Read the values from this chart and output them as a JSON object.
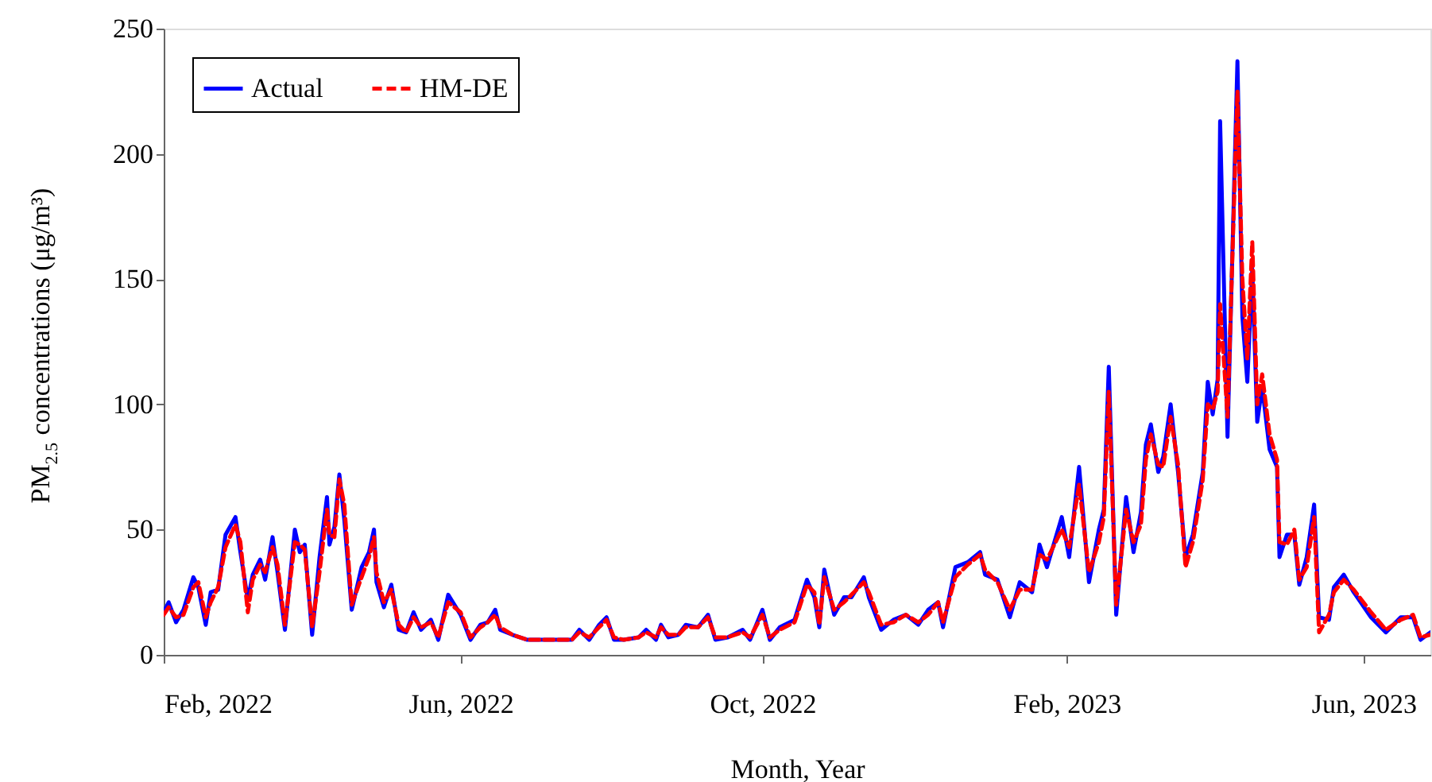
{
  "chart_data": {
    "type": "line",
    "xlabel": "Month, Year",
    "ylabel": "PM$_{2.5}$ concentrations (μg/m³)",
    "x": [
      "2022-02-01",
      "2022-02-03",
      "2022-02-06",
      "2022-02-09",
      "2022-02-13",
      "2022-02-15",
      "2022-02-18",
      "2022-02-20",
      "2022-02-23",
      "2022-02-26",
      "2022-03-02",
      "2022-03-04",
      "2022-03-07",
      "2022-03-09",
      "2022-03-12",
      "2022-03-14",
      "2022-03-17",
      "2022-03-19",
      "2022-03-22",
      "2022-03-26",
      "2022-03-28",
      "2022-03-30",
      "2022-04-02",
      "2022-04-05",
      "2022-04-08",
      "2022-04-09",
      "2022-04-11",
      "2022-04-13",
      "2022-04-15",
      "2022-04-18",
      "2022-04-22",
      "2022-04-25",
      "2022-04-27",
      "2022-04-28",
      "2022-05-01",
      "2022-05-04",
      "2022-05-07",
      "2022-05-10",
      "2022-05-13",
      "2022-05-16",
      "2022-05-20",
      "2022-05-23",
      "2022-05-27",
      "2022-06-01",
      "2022-06-05",
      "2022-06-09",
      "2022-06-12",
      "2022-06-15",
      "2022-06-17",
      "2022-06-22",
      "2022-06-28",
      "2022-07-04",
      "2022-07-11",
      "2022-07-16",
      "2022-07-19",
      "2022-07-23",
      "2022-07-27",
      "2022-07-30",
      "2022-08-02",
      "2022-08-06",
      "2022-08-12",
      "2022-08-15",
      "2022-08-19",
      "2022-08-21",
      "2022-08-24",
      "2022-08-28",
      "2022-08-31",
      "2022-09-05",
      "2022-09-09",
      "2022-09-12",
      "2022-09-17",
      "2022-09-23",
      "2022-09-26",
      "2022-10-01",
      "2022-10-04",
      "2022-10-08",
      "2022-10-14",
      "2022-10-19",
      "2022-10-22",
      "2022-10-24",
      "2022-10-26",
      "2022-10-30",
      "2022-11-03",
      "2022-11-06",
      "2022-11-11",
      "2022-11-13",
      "2022-11-18",
      "2022-11-23",
      "2022-11-28",
      "2022-12-03",
      "2022-12-07",
      "2022-12-11",
      "2022-12-13",
      "2022-12-18",
      "2022-12-23",
      "2022-12-28",
      "2022-12-30",
      "2023-01-04",
      "2023-01-09",
      "2023-01-13",
      "2023-01-18",
      "2023-01-21",
      "2023-01-24",
      "2023-01-30",
      "2023-02-02",
      "2023-02-06",
      "2023-02-10",
      "2023-02-14",
      "2023-02-16",
      "2023-02-18",
      "2023-02-21",
      "2023-02-25",
      "2023-02-28",
      "2023-03-03",
      "2023-03-05",
      "2023-03-07",
      "2023-03-10",
      "2023-03-12",
      "2023-03-15",
      "2023-03-18",
      "2023-03-21",
      "2023-03-24",
      "2023-03-28",
      "2023-03-30",
      "2023-04-01",
      "2023-04-03",
      "2023-04-04",
      "2023-04-07",
      "2023-04-11",
      "2023-04-13",
      "2023-04-15",
      "2023-04-17",
      "2023-04-19",
      "2023-04-21",
      "2023-04-24",
      "2023-04-27",
      "2023-04-28",
      "2023-05-01",
      "2023-05-04",
      "2023-05-06",
      "2023-05-09",
      "2023-05-12",
      "2023-05-14",
      "2023-05-18",
      "2023-05-20",
      "2023-05-24",
      "2023-05-28",
      "2023-06-04",
      "2023-06-10",
      "2023-06-16",
      "2023-06-21",
      "2023-06-24",
      "2023-06-28"
    ],
    "series": [
      {
        "name": "Actual",
        "color": "#0000ff",
        "line_style": "solid",
        "values": [
          17,
          21,
          13,
          18,
          31,
          27,
          12,
          25,
          26,
          48,
          55,
          41,
          22,
          32,
          38,
          30,
          47,
          33,
          10,
          50,
          41,
          44,
          8,
          39,
          63,
          44,
          51,
          72,
          54,
          18,
          35,
          41,
          50,
          29,
          19,
          28,
          10,
          9,
          17,
          10,
          14,
          6,
          24,
          16,
          6,
          12,
          13,
          18,
          10,
          8,
          6,
          6,
          6,
          6,
          10,
          6,
          12,
          15,
          6,
          6,
          7,
          10,
          6,
          12,
          7,
          8,
          12,
          11,
          16,
          6,
          7,
          10,
          6,
          18,
          6,
          11,
          14,
          30,
          23,
          11,
          34,
          16,
          23,
          23,
          31,
          23,
          10,
          14,
          16,
          12,
          18,
          21,
          11,
          35,
          37,
          41,
          32,
          30,
          15,
          29,
          25,
          44,
          35,
          55,
          39,
          75,
          29,
          50,
          58,
          115,
          16,
          63,
          41,
          57,
          84,
          92,
          73,
          79,
          100,
          73,
          39,
          48,
          73,
          109,
          96,
          110,
          213,
          87,
          237,
          135,
          109,
          154,
          93,
          107,
          82,
          75,
          39,
          48,
          48,
          28,
          39,
          60,
          15,
          14,
          27,
          32,
          25,
          15,
          9,
          15,
          15,
          6,
          9
        ]
      },
      {
        "name": "HM-DE",
        "color": "#ff0000",
        "line_style": "dashed",
        "values": [
          16,
          19,
          15,
          16,
          27,
          29,
          15,
          21,
          27,
          43,
          52,
          45,
          17,
          30,
          36,
          33,
          43,
          36,
          12,
          45,
          44,
          42,
          11,
          33,
          58,
          48,
          47,
          70,
          60,
          20,
          31,
          39,
          47,
          33,
          21,
          26,
          12,
          9,
          15,
          11,
          13,
          7,
          21,
          17,
          7,
          11,
          13,
          16,
          11,
          8,
          6,
          6,
          6,
          6,
          9,
          7,
          11,
          14,
          7,
          6,
          7,
          9,
          7,
          11,
          8,
          8,
          11,
          11,
          15,
          7,
          7,
          9,
          7,
          16,
          7,
          10,
          13,
          28,
          25,
          12,
          31,
          18,
          21,
          24,
          29,
          25,
          12,
          13,
          16,
          13,
          16,
          21,
          13,
          31,
          36,
          40,
          34,
          29,
          18,
          26,
          26,
          40,
          38,
          50,
          43,
          68,
          33,
          45,
          55,
          105,
          20,
          58,
          45,
          52,
          78,
          88,
          76,
          75,
          95,
          76,
          35,
          45,
          70,
          100,
          98,
          105,
          140,
          95,
          225,
          150,
          118,
          165,
          100,
          112,
          88,
          78,
          45,
          44,
          50,
          30,
          35,
          55,
          9,
          16,
          25,
          30,
          26,
          17,
          10,
          14,
          16,
          7,
          8
        ]
      }
    ],
    "xlim": [
      "2022-02-01",
      "2023-06-28"
    ],
    "xticks": [
      {
        "value": "2022-02-01",
        "label": "Feb, 2022"
      },
      {
        "value": "2022-06-01",
        "label": "Jun, 2022"
      },
      {
        "value": "2022-10-01",
        "label": "Oct, 2022"
      },
      {
        "value": "2023-02-01",
        "label": "Feb, 2023"
      },
      {
        "value": "2023-06-01",
        "label": "Jun, 2023"
      }
    ],
    "ylim": [
      0,
      250
    ],
    "yticks": [
      0,
      50,
      100,
      150,
      200,
      250
    ],
    "grid": false,
    "legend": "top left",
    "marker": "none"
  }
}
